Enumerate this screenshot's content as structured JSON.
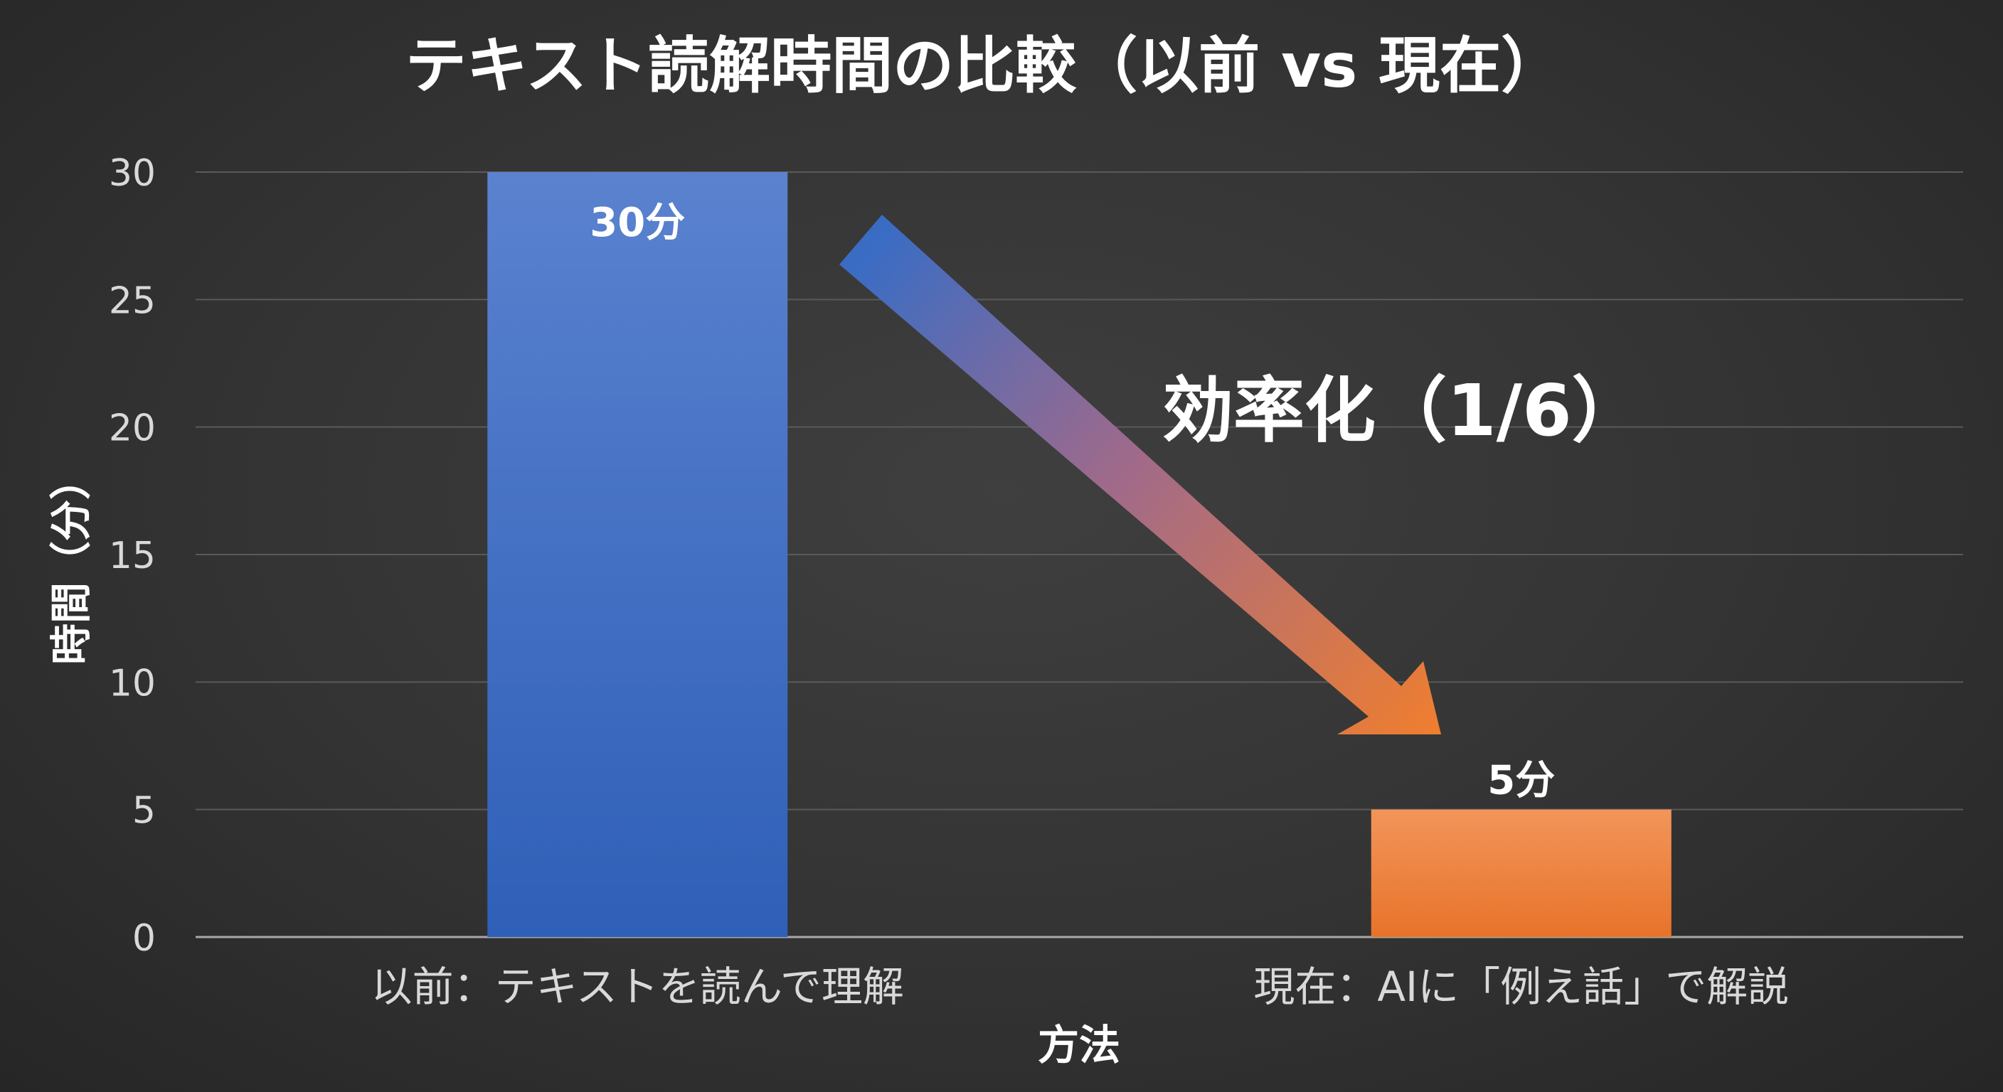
{
  "chart_data": {
    "type": "bar",
    "title": "テキスト読解時間の比較（以前 vs 現在）",
    "xlabel": "方法",
    "ylabel": "時間（分）",
    "ylim": [
      0,
      30
    ],
    "yticks": [
      0,
      5,
      10,
      15,
      20,
      25,
      30
    ],
    "grid": true,
    "categories": [
      "以前：テキストを読んで理解",
      "現在：AIに「例え話」で解説"
    ],
    "values": [
      30,
      5
    ],
    "data_labels": [
      "30分",
      "5分"
    ],
    "colors": [
      "#4472c4",
      "#ed7d31"
    ],
    "annotation": "効率化（1/6）"
  }
}
